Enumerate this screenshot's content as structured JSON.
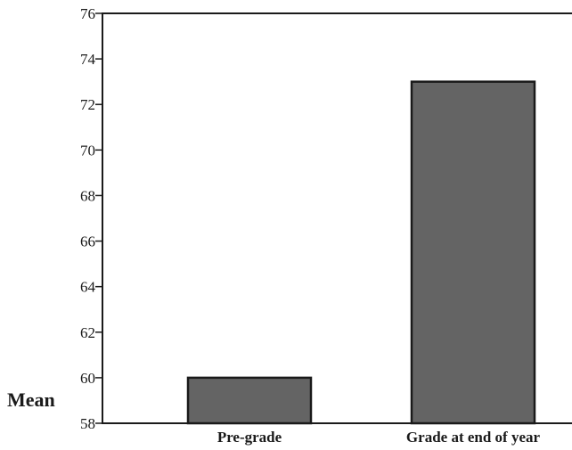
{
  "chart_data": {
    "type": "bar",
    "categories": [
      "Pre-grade",
      "Grade at end of year"
    ],
    "values": [
      60,
      73
    ],
    "title": "",
    "xlabel": "",
    "ylabel": "Mean",
    "ylim": [
      58,
      76
    ],
    "yticks": [
      "76",
      "74",
      "72",
      "70",
      "68",
      "66",
      "64",
      "62",
      "60",
      "58"
    ],
    "grid": false,
    "bar_color": "#646464",
    "bar_edge_color": "#1a1a1a"
  }
}
